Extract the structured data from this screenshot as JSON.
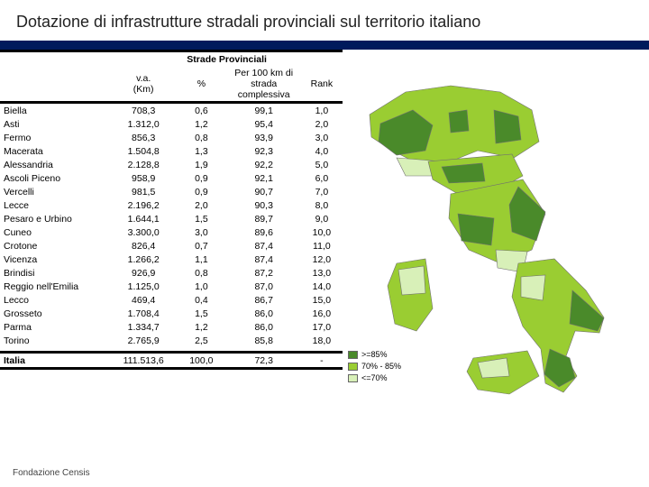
{
  "title": "Dotazione di infrastrutture stradali provinciali sul territorio italiano",
  "table": {
    "header_group": "Strade Provinciali",
    "col_headers": {
      "va": "v.a.\n(Km)",
      "pct": "%",
      "per100": "Per 100 km di\nstrada\ncomplessiva",
      "rank": "Rank"
    },
    "rows": [
      {
        "prov": "Biella",
        "va": "708,3",
        "pct": "0,6",
        "per": "99,1",
        "rank": "1,0"
      },
      {
        "prov": "Asti",
        "va": "1.312,0",
        "pct": "1,2",
        "per": "95,4",
        "rank": "2,0"
      },
      {
        "prov": "Fermo",
        "va": "856,3",
        "pct": "0,8",
        "per": "93,9",
        "rank": "3,0"
      },
      {
        "prov": "Macerata",
        "va": "1.504,8",
        "pct": "1,3",
        "per": "92,3",
        "rank": "4,0"
      },
      {
        "prov": "Alessandria",
        "va": "2.128,8",
        "pct": "1,9",
        "per": "92,2",
        "rank": "5,0"
      },
      {
        "prov": "Ascoli Piceno",
        "va": "958,9",
        "pct": "0,9",
        "per": "92,1",
        "rank": "6,0"
      },
      {
        "prov": "Vercelli",
        "va": "981,5",
        "pct": "0,9",
        "per": "90,7",
        "rank": "7,0"
      },
      {
        "prov": "Lecce",
        "va": "2.196,2",
        "pct": "2,0",
        "per": "90,3",
        "rank": "8,0"
      },
      {
        "prov": "Pesaro e Urbino",
        "va": "1.644,1",
        "pct": "1,5",
        "per": "89,7",
        "rank": "9,0"
      },
      {
        "prov": "Cuneo",
        "va": "3.300,0",
        "pct": "3,0",
        "per": "89,6",
        "rank": "10,0"
      },
      {
        "prov": "Crotone",
        "va": "826,4",
        "pct": "0,7",
        "per": "87,4",
        "rank": "11,0"
      },
      {
        "prov": "Vicenza",
        "va": "1.266,2",
        "pct": "1,1",
        "per": "87,4",
        "rank": "12,0"
      },
      {
        "prov": "Brindisi",
        "va": "926,9",
        "pct": "0,8",
        "per": "87,2",
        "rank": "13,0"
      },
      {
        "prov": "Reggio nell'Emilia",
        "va": "1.125,0",
        "pct": "1,0",
        "per": "87,0",
        "rank": "14,0"
      },
      {
        "prov": "Lecco",
        "va": "469,4",
        "pct": "0,4",
        "per": "86,7",
        "rank": "15,0"
      },
      {
        "prov": "Grosseto",
        "va": "1.708,4",
        "pct": "1,5",
        "per": "86,0",
        "rank": "16,0"
      },
      {
        "prov": "Parma",
        "va": "1.334,7",
        "pct": "1,2",
        "per": "86,0",
        "rank": "17,0"
      },
      {
        "prov": "Torino",
        "va": "2.765,9",
        "pct": "2,5",
        "per": "85,8",
        "rank": "18,0"
      }
    ],
    "italia": {
      "prov": "Italia",
      "va": "111.513,6",
      "pct": "100,0",
      "per": "72,3",
      "rank": "-"
    }
  },
  "map": {
    "colors": {
      "high": "#4a8a2a",
      "mid": "#9acd32",
      "low": "#d8f0b8",
      "border": "#707070",
      "bg": "#ffffff"
    },
    "legend": [
      {
        "key": "high",
        "label": ">=85%"
      },
      {
        "key": "mid",
        "label": "70% - 85%"
      },
      {
        "key": "low",
        "label": "<=70%"
      }
    ]
  },
  "footer": "Fondazione Censis"
}
